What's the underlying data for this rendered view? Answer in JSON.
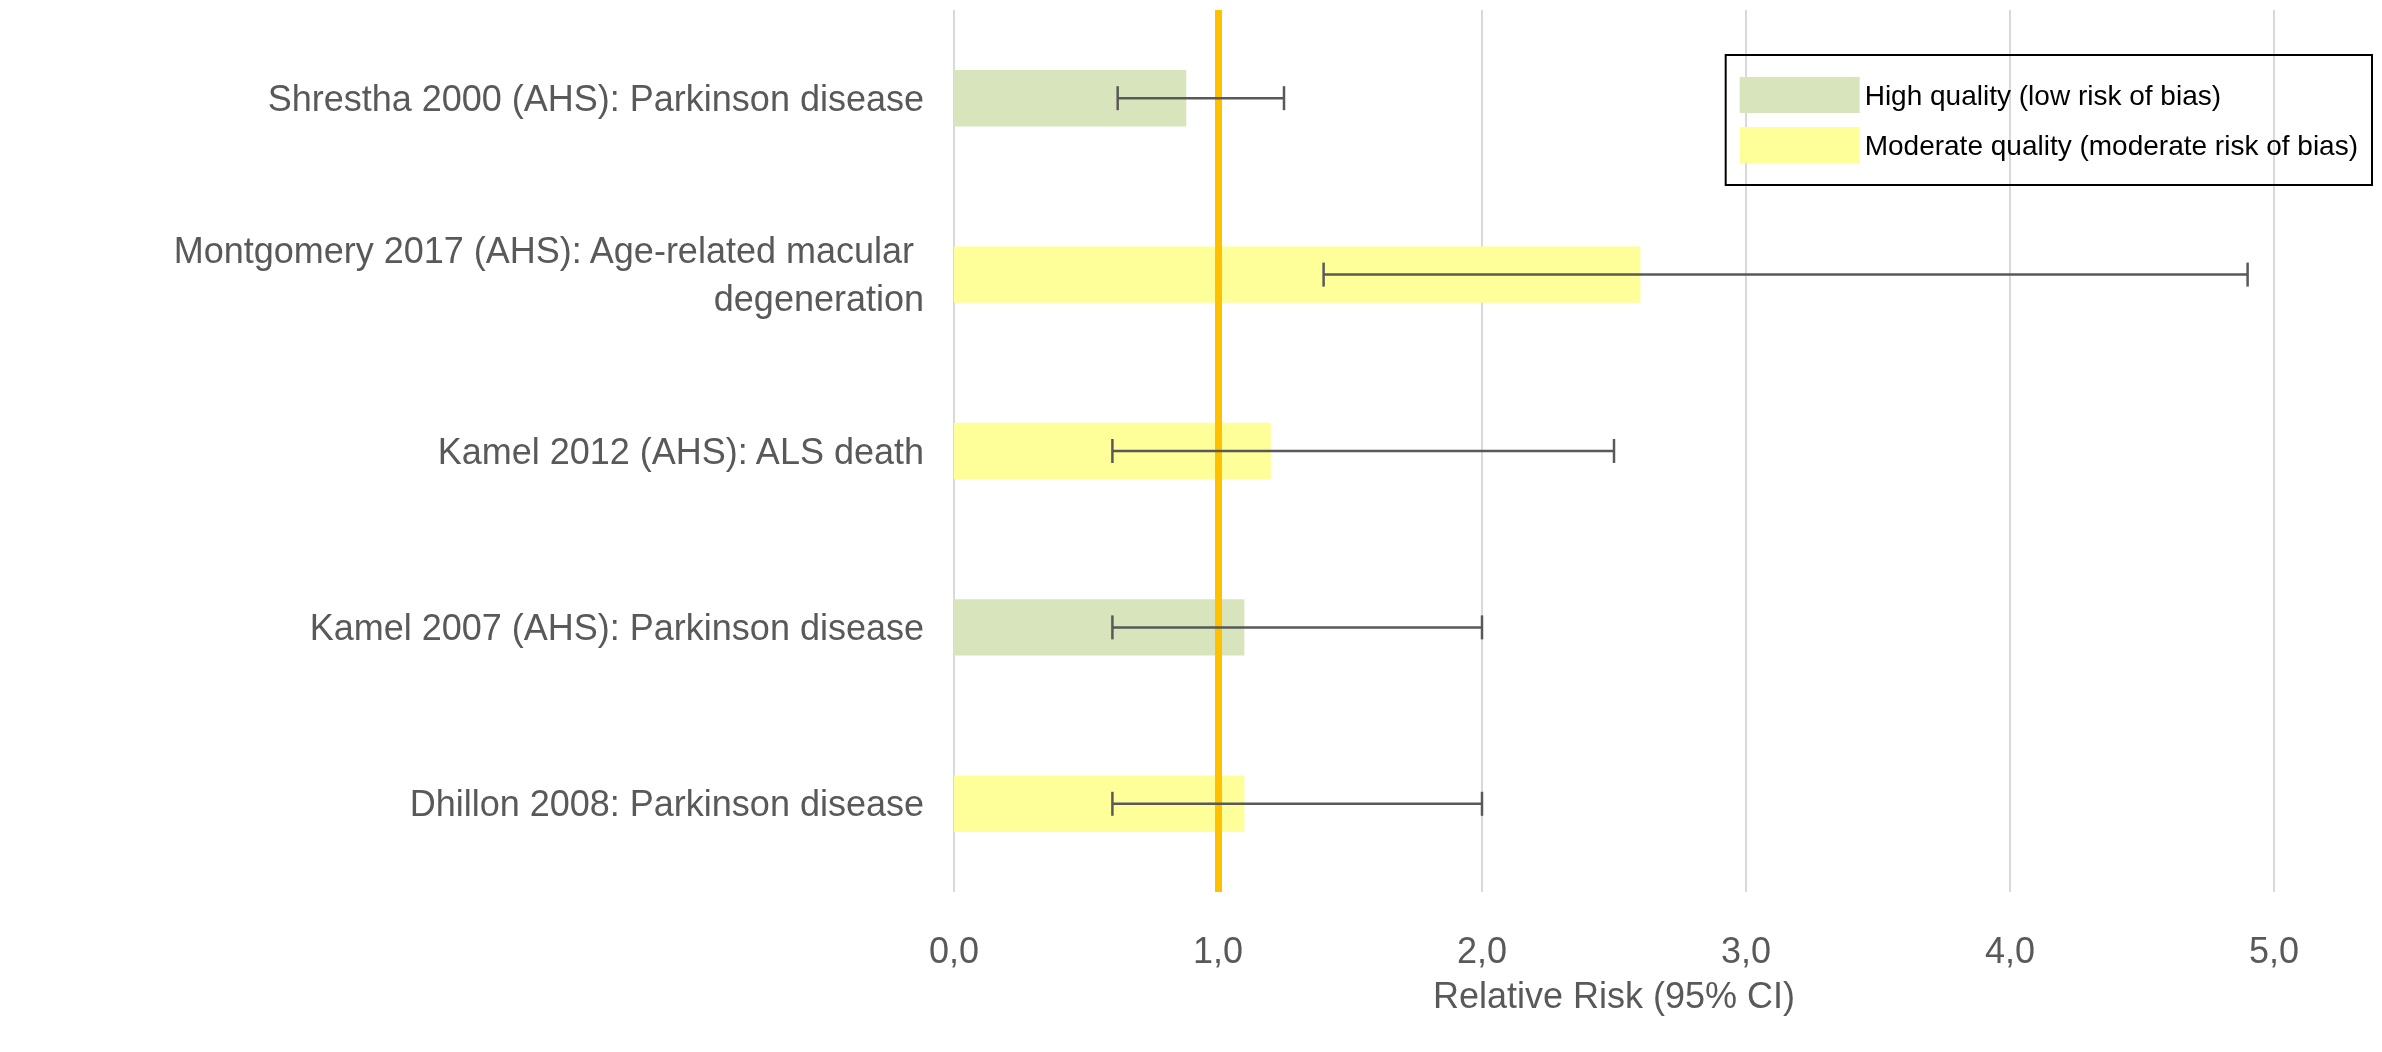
{
  "chart_data": {
    "type": "bar",
    "orientation": "horizontal",
    "xlabel": "Relative Risk (95% CI)",
    "categories": [
      "Shrestha 2000 (AHS): Parkinson disease",
      "Montgomery 2017 (AHS): Age-related macular degeneration",
      "Kamel 2012 (AHS): ALS death",
      "Kamel 2007 (AHS): Parkinson disease",
      "Dhillon 2008: Parkinson disease"
    ],
    "series": [
      {
        "name": "High quality (low risk of bias)",
        "color": "#d8e4bc",
        "values": [
          0.88,
          null,
          null,
          1.1,
          null
        ],
        "errors": [
          [
            0.62,
            1.25
          ],
          null,
          null,
          [
            0.6,
            2.0
          ],
          null
        ]
      },
      {
        "name": "Moderate quality (moderate risk of bias)",
        "color": "#ffff99",
        "values": [
          null,
          2.6,
          1.2,
          null,
          1.1
        ],
        "errors": [
          null,
          [
            1.4,
            4.9
          ],
          [
            0.6,
            2.5
          ],
          null,
          [
            0.6,
            2.0
          ]
        ]
      }
    ],
    "xlim": [
      0,
      5
    ],
    "xticks": [
      {
        "value": 0,
        "label": "0,0"
      },
      {
        "value": 1,
        "label": "1,0"
      },
      {
        "value": 2,
        "label": "2,0"
      },
      {
        "value": 3,
        "label": "3,0"
      },
      {
        "value": 4,
        "label": "4,0"
      },
      {
        "value": 5,
        "label": "5,0"
      }
    ],
    "ref_lines": [
      {
        "axis": "x",
        "value": 1,
        "color": "#ffc000"
      }
    ],
    "grid": "x",
    "legend": "top right"
  }
}
